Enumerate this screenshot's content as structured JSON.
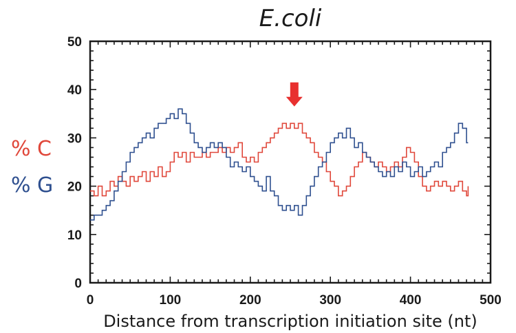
{
  "chart_data": {
    "type": "line",
    "title": "E.coli",
    "xlabel": "Distance from transcription initiation site (nt)",
    "ylabel_series": [
      "% C",
      "% G"
    ],
    "xlim": [
      0,
      500
    ],
    "ylim": [
      0,
      50
    ],
    "xticks": [
      0,
      100,
      200,
      300,
      400,
      500
    ],
    "yticks": [
      0,
      10,
      20,
      30,
      40,
      50
    ],
    "grid": false,
    "annotation": {
      "type": "arrow",
      "x": 255,
      "y_top": 41.5,
      "y_tip": 36.5,
      "color": "#e8302f"
    },
    "series": [
      {
        "name": "% C",
        "color": "#e0473a",
        "x": [
          0,
          5,
          10,
          15,
          20,
          25,
          30,
          35,
          40,
          45,
          50,
          55,
          60,
          65,
          70,
          75,
          80,
          85,
          90,
          95,
          100,
          105,
          110,
          115,
          120,
          125,
          130,
          135,
          140,
          145,
          150,
          155,
          160,
          165,
          170,
          175,
          180,
          185,
          190,
          195,
          200,
          205,
          210,
          215,
          220,
          225,
          230,
          235,
          240,
          245,
          250,
          255,
          260,
          265,
          270,
          275,
          280,
          285,
          290,
          295,
          300,
          305,
          310,
          315,
          320,
          325,
          330,
          335,
          340,
          345,
          350,
          355,
          360,
          365,
          370,
          375,
          380,
          385,
          390,
          395,
          400,
          405,
          410,
          415,
          420,
          425,
          430,
          435,
          440,
          445,
          450,
          455,
          460,
          465,
          470,
          472
        ],
        "y": [
          19,
          18,
          20,
          18,
          19,
          21,
          20,
          22,
          21,
          20,
          22,
          21,
          22,
          23,
          21,
          23,
          22,
          24,
          22,
          23,
          25,
          27,
          26,
          27,
          25,
          27,
          26,
          26,
          27,
          26,
          27,
          27,
          28,
          27,
          28,
          27,
          28,
          29,
          26,
          25,
          26,
          25,
          27,
          28,
          29,
          30,
          31,
          32,
          33,
          32,
          33,
          32,
          33,
          31,
          30,
          29,
          27,
          26,
          25,
          23,
          21,
          20,
          18,
          19,
          20,
          22,
          24,
          25,
          27,
          26,
          25,
          24,
          25,
          24,
          23,
          24,
          25,
          24,
          26,
          28,
          27,
          25,
          22,
          20,
          19,
          20,
          21,
          20,
          21,
          20,
          19,
          20,
          21,
          19,
          18,
          20
        ]
      },
      {
        "name": "% G",
        "color": "#2e4f8f",
        "x": [
          0,
          5,
          10,
          15,
          20,
          25,
          30,
          35,
          40,
          45,
          50,
          55,
          60,
          65,
          70,
          75,
          80,
          85,
          90,
          95,
          100,
          105,
          110,
          115,
          120,
          125,
          130,
          135,
          140,
          145,
          150,
          155,
          160,
          165,
          170,
          175,
          180,
          185,
          190,
          195,
          200,
          205,
          210,
          215,
          220,
          225,
          230,
          235,
          240,
          245,
          250,
          255,
          260,
          265,
          270,
          275,
          280,
          285,
          290,
          295,
          300,
          305,
          310,
          315,
          320,
          325,
          330,
          335,
          340,
          345,
          350,
          355,
          360,
          365,
          370,
          375,
          380,
          385,
          390,
          395,
          400,
          405,
          410,
          415,
          420,
          425,
          430,
          435,
          440,
          445,
          450,
          455,
          460,
          465,
          470,
          472
        ],
        "y": [
          13,
          14,
          14,
          15,
          16,
          17,
          19,
          21,
          23,
          25,
          27,
          28,
          29,
          30,
          31,
          30,
          32,
          33,
          33,
          34,
          35,
          34,
          36,
          35,
          33,
          31,
          29,
          28,
          27,
          28,
          29,
          28,
          29,
          28,
          26,
          24,
          25,
          24,
          23,
          24,
          22,
          21,
          20,
          19,
          22,
          19,
          18,
          16,
          15,
          16,
          15,
          16,
          14,
          16,
          18,
          20,
          22,
          24,
          25,
          27,
          29,
          30,
          31,
          30,
          32,
          30,
          28,
          29,
          27,
          26,
          25,
          24,
          23,
          22,
          23,
          22,
          24,
          23,
          25,
          24,
          22,
          23,
          24,
          22,
          23,
          24,
          25,
          24,
          27,
          28,
          29,
          31,
          33,
          32,
          29,
          29
        ]
      }
    ]
  }
}
